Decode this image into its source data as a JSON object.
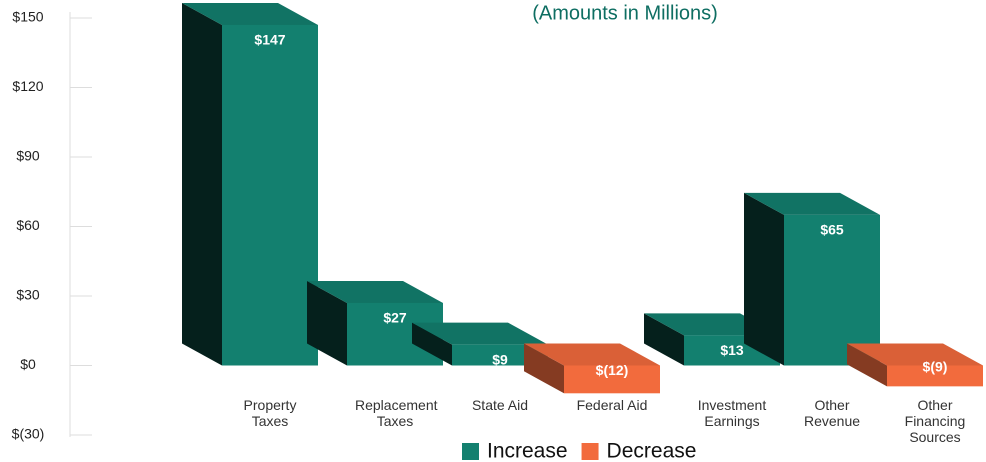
{
  "chart_data": {
    "type": "bar3d",
    "subtitle": "(Amounts in Millions)",
    "categories": [
      "Property Taxes",
      "Replacement Taxes",
      "State Aid",
      "Federal Aid",
      "Investment Earnings",
      "Other Revenue",
      "Other Financing Sources"
    ],
    "values": [
      147,
      27,
      9,
      -12,
      13,
      65,
      -9
    ],
    "value_labels": [
      "$147",
      "$27",
      "$9",
      "$(12)",
      "$13",
      "$65",
      "$(9)"
    ],
    "legend": [
      {
        "name": "Increase",
        "color": "#13806f"
      },
      {
        "name": "Decrease",
        "color": "#f26b3d"
      }
    ],
    "ylim": [
      -30,
      150
    ],
    "yticks": [
      {
        "value": -30,
        "label": "$(30)"
      },
      {
        "value": 0,
        "label": "$0"
      },
      {
        "value": 30,
        "label": "$30"
      },
      {
        "value": 60,
        "label": "$60"
      },
      {
        "value": 90,
        "label": "$90"
      },
      {
        "value": 120,
        "label": "$120"
      },
      {
        "value": 150,
        "label": "$150"
      }
    ]
  }
}
